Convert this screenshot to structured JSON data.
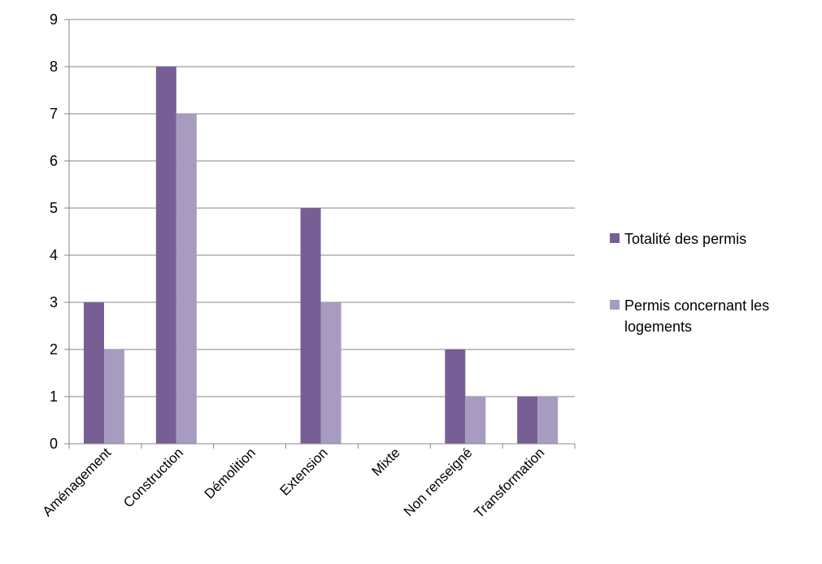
{
  "chart_data": {
    "type": "bar",
    "categories": [
      "Aménagement",
      "Construction",
      "Démolition",
      "Extension",
      "Mixte",
      "Non renseigné",
      "Transformation"
    ],
    "series": [
      {
        "name": "Totalité des permis",
        "values": [
          3,
          8,
          0,
          5,
          0,
          2,
          1
        ],
        "color": "#775F95"
      },
      {
        "name": "Permis concernant les logements",
        "values": [
          2,
          7,
          0,
          3,
          0,
          1,
          1
        ],
        "color": "#A89BC0"
      }
    ],
    "legend_lines": [
      [
        "Totalité des permis"
      ],
      [
        "Permis concernant les",
        "logements"
      ]
    ],
    "ylim": [
      0,
      9
    ],
    "yticks": [
      0,
      1,
      2,
      3,
      4,
      5,
      6,
      7,
      8,
      9
    ],
    "grid": true,
    "legend_position": "right",
    "gridline_color": "#878787",
    "title": "",
    "xlabel": "",
    "ylabel": ""
  }
}
